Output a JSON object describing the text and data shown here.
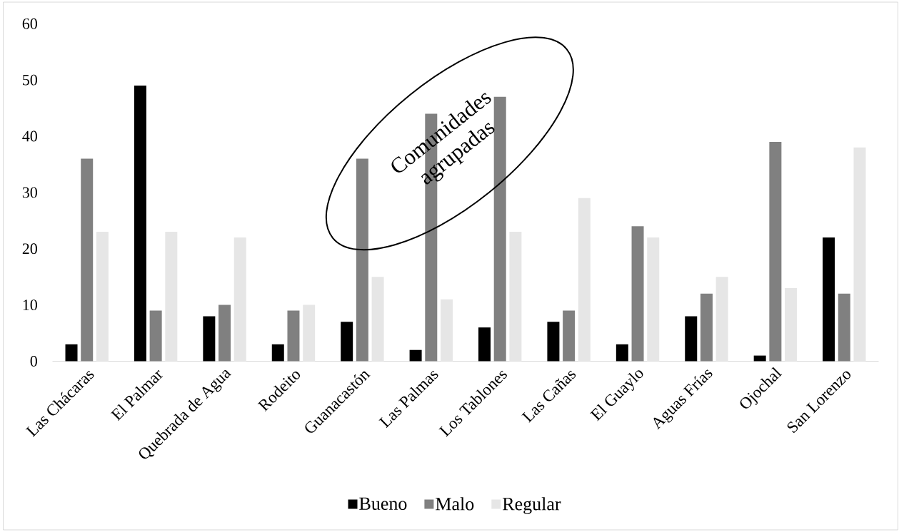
{
  "chart_data": {
    "type": "bar",
    "categories": [
      "Las Chácaras",
      "El Palmar",
      "Quebrada de Agua",
      "Rodeito",
      "Guanacastón",
      "Las Palmas",
      "Los Tablones",
      "Las Cañas",
      "El Guaylo",
      "Aguas Frías",
      "Ojochal",
      "San Lorenzo"
    ],
    "series": [
      {
        "name": "Bueno",
        "color": "#000000",
        "values": [
          3,
          49,
          8,
          3,
          7,
          2,
          6,
          7,
          3,
          8,
          1,
          22
        ]
      },
      {
        "name": "Malo",
        "color": "#808080",
        "values": [
          36,
          9,
          10,
          9,
          36,
          44,
          47,
          9,
          24,
          12,
          39,
          12
        ]
      },
      {
        "name": "Regular",
        "color": "#e6e6e6",
        "values": [
          23,
          23,
          22,
          10,
          15,
          11,
          23,
          29,
          22,
          15,
          13,
          38
        ]
      }
    ],
    "ylim": [
      0,
      60
    ],
    "yticks": [
      0,
      10,
      20,
      30,
      40,
      50,
      60
    ],
    "legend": "bottom",
    "annotations": [
      "Comunidades agrupadas"
    ]
  }
}
